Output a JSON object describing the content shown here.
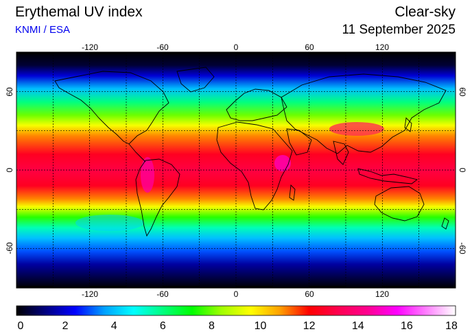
{
  "header": {
    "title": "Erythemal UV index",
    "credit": "KNMI / ESA",
    "mode": "Clear-sky",
    "date": "11 September 2025"
  },
  "map": {
    "projection": "equirectangular",
    "lon_range": [
      -180,
      180
    ],
    "lat_range": [
      -90,
      90
    ],
    "lon_ticks": [
      -120,
      -60,
      0,
      60,
      120
    ],
    "lat_ticks": [
      60,
      0,
      -60
    ],
    "lon_tick_labels": [
      "-120",
      "-60",
      "0",
      "60",
      "120"
    ],
    "lat_tick_labels": [
      "60",
      "0",
      "-60"
    ],
    "grid_lon": [
      -150,
      -120,
      -90,
      -60,
      -30,
      0,
      30,
      60,
      90,
      120,
      150
    ],
    "grid_lat": [
      -60,
      -30,
      0,
      30,
      60
    ],
    "grid": true
  },
  "colorbar": {
    "min": 0,
    "max": 18,
    "tick_labels": [
      "0",
      "2",
      "4",
      "6",
      "8",
      "10",
      "12",
      "14",
      "16",
      "18"
    ],
    "colors": [
      "#000000",
      "#000080",
      "#0000ff",
      "#00a0ff",
      "#00ffff",
      "#00ff80",
      "#00ff00",
      "#a0ff00",
      "#ffff00",
      "#ffa000",
      "#ff0000",
      "#ff0050",
      "#ff0090",
      "#ff00ff",
      "#ff80ff",
      "#ffffff"
    ]
  },
  "uv_profile": [
    {
      "lat": 90,
      "uv": 0.0
    },
    {
      "lat": 80,
      "uv": 0.5
    },
    {
      "lat": 72,
      "uv": 2.0
    },
    {
      "lat": 62,
      "uv": 4.0
    },
    {
      "lat": 52,
      "uv": 6.0
    },
    {
      "lat": 42,
      "uv": 8.0
    },
    {
      "lat": 34,
      "uv": 9.5
    },
    {
      "lat": 26,
      "uv": 11.0
    },
    {
      "lat": 12,
      "uv": 12.5
    },
    {
      "lat": 0,
      "uv": 13.0
    },
    {
      "lat": -12,
      "uv": 12.5
    },
    {
      "lat": -22,
      "uv": 11.0
    },
    {
      "lat": -28,
      "uv": 9.5
    },
    {
      "lat": -36,
      "uv": 7.5
    },
    {
      "lat": -44,
      "uv": 5.5
    },
    {
      "lat": -52,
      "uv": 4.0
    },
    {
      "lat": -62,
      "uv": 3.0
    },
    {
      "lat": -72,
      "uv": 1.5
    },
    {
      "lat": -90,
      "uv": 0.0
    }
  ]
}
